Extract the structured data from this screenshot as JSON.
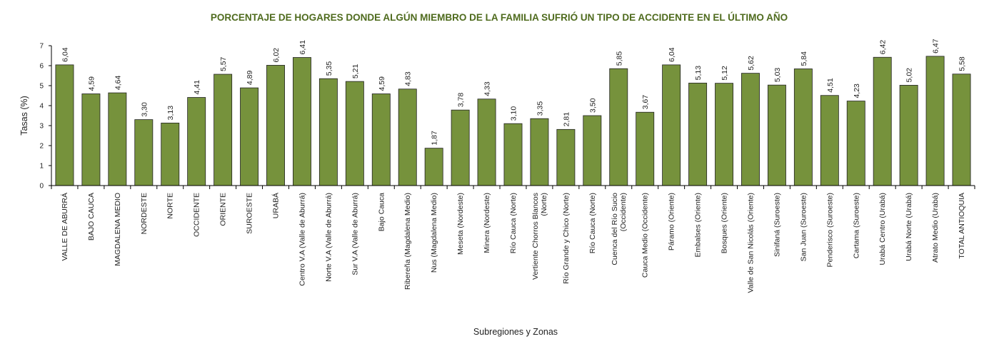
{
  "chart_data": {
    "type": "bar",
    "title": "PORCENTAJE DE HOGARES DONDE ALGÚN MIEMBRO DE LA FAMILIA SUFRIÓ UN TIPO DE ACCIDENTE EN EL ÚLTIMO AÑO",
    "xlabel": "Subregiones y Zonas",
    "ylabel": "Tasas (%)",
    "ylim": [
      0,
      7
    ],
    "yticks": [
      "0",
      "1",
      "2",
      "3",
      "4",
      "5",
      "6",
      "7"
    ],
    "grid": false,
    "legend": "none",
    "bar_color": "#76923c",
    "title_color": "#4f6b1e",
    "categories": [
      [
        "VALLE DE ABURRÁ"
      ],
      [
        "BAJO CAUCA"
      ],
      [
        "MAGDALENA MEDIO"
      ],
      [
        "NORDESTE"
      ],
      [
        "NORTE"
      ],
      [
        "OCCIDENTE"
      ],
      [
        "ORIENTE"
      ],
      [
        "SUROESTE"
      ],
      [
        "URABÁ"
      ],
      [
        "Centro V.A (Valle de Aburrá)"
      ],
      [
        "Norte V.A (Valle de Aburrá)"
      ],
      [
        "Sur V.A (Valle de Aburrá)"
      ],
      [
        "Bajo Cauca"
      ],
      [
        "Ribereña (Magdalena Medio)"
      ],
      [
        "Nus (Magdalena Medio)"
      ],
      [
        "Meseta (Nordeste)"
      ],
      [
        "Minera (Nordeste)"
      ],
      [
        "Río Cauca (Norte)"
      ],
      [
        "Vertiente Chorros Blancos",
        "(Norte)"
      ],
      [
        "Río Grande y Chico (Norte)"
      ],
      [
        "Río Cauca (Norte)"
      ],
      [
        "Cuenca del Río Sucio",
        "(Occidente)"
      ],
      [
        "Cauca Medio (Occidente)"
      ],
      [
        "Páramo (Oriente)"
      ],
      [
        "Embalses (Oriente)"
      ],
      [
        "Bosques (Oriente)"
      ],
      [
        "Valle de San Nicolás (Oriente)"
      ],
      [
        "Sinifaná (Suroeste)"
      ],
      [
        "San Juan (Suroeste)"
      ],
      [
        "Penderisco (Suroeste)"
      ],
      [
        "Cartama (Suroeste)"
      ],
      [
        "Urabá Centro (Urabá)"
      ],
      [
        "Urabá Norte (Urabá)"
      ],
      [
        "Atrato Medio (Urabá)"
      ],
      [
        "TOTAL ANTIOQUIA"
      ]
    ],
    "values": [
      6.04,
      4.59,
      4.64,
      3.3,
      3.13,
      4.41,
      5.57,
      4.89,
      6.02,
      6.41,
      5.35,
      5.21,
      4.59,
      4.83,
      1.87,
      3.78,
      4.33,
      3.1,
      3.35,
      2.81,
      3.5,
      5.85,
      3.67,
      6.04,
      5.13,
      5.12,
      5.62,
      5.03,
      5.84,
      4.51,
      4.23,
      6.42,
      5.02,
      6.47,
      5.58
    ],
    "labels": [
      "6,04",
      "4,59",
      "4,64",
      "3,30",
      "3,13",
      "4,41",
      "5,57",
      "4,89",
      "6,02",
      "6,41",
      "5,35",
      "5,21",
      "4,59",
      "4,83",
      "1,87",
      "3,78",
      "4,33",
      "3,10",
      "3,35",
      "2,81",
      "3,50",
      "5,85",
      "3,67",
      "6,04",
      "5,13",
      "5,12",
      "5,62",
      "5,03",
      "5,84",
      "4,51",
      "4,23",
      "6,42",
      "5,02",
      "6,47",
      "5,58"
    ]
  }
}
